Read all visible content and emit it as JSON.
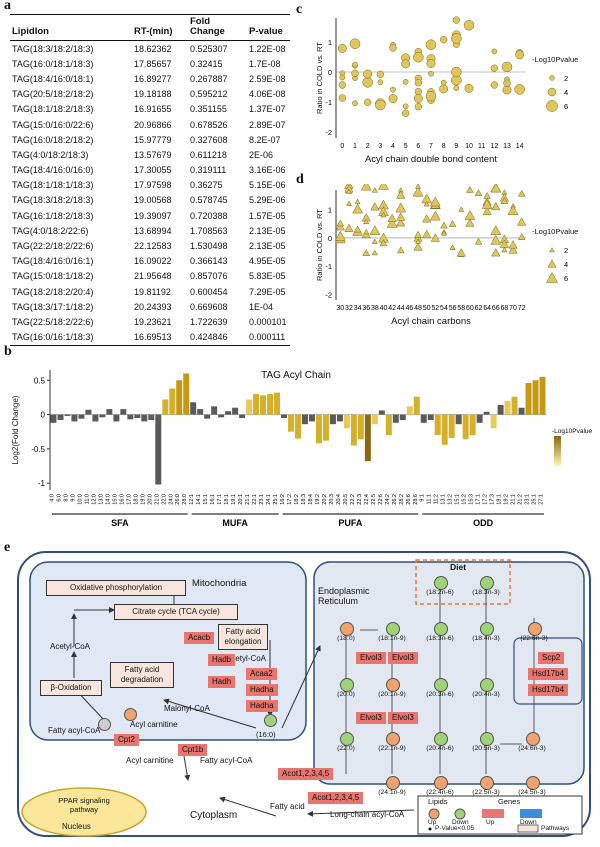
{
  "panels": {
    "a": "a",
    "b": "b",
    "c": "c",
    "d": "d",
    "e": "e"
  },
  "table_a": {
    "headers": [
      "LipidIon",
      "RT-(min)",
      "Fold Change",
      "P-value"
    ],
    "rows": [
      [
        "TAG(18:3/18:2/18:3)",
        "18.62362",
        "0.525307",
        "1.22E-08"
      ],
      [
        "TAG(16:0/18:1/18:3)",
        "17.85657",
        "0.32415",
        "1.7E-08"
      ],
      [
        "TAG(18:4/16:0/18:1)",
        "16.89277",
        "0.267887",
        "2.59E-08"
      ],
      [
        "TAG(20:5/18:2/18:2)",
        "19.18188",
        "0.595212",
        "4.06E-08"
      ],
      [
        "TAG(18:1/18:2/18:3)",
        "16.91655",
        "0.351155",
        "1.37E-07"
      ],
      [
        "TAG(15:0/16:0/22:6)",
        "20.96866",
        "0.678526",
        "2.89E-07"
      ],
      [
        "TAG(16:0/18:2/18:2)",
        "15.97779",
        "0.327608",
        "8.2E-07"
      ],
      [
        "TAG(4:0/18:2/18:3)",
        "13.57679",
        "0.611218",
        "2E-06"
      ],
      [
        "TAG(18:4/16:0/16:0)",
        "17.30055",
        "0.319111",
        "3.16E-06"
      ],
      [
        "TAG(18:1/18:1/18:3)",
        "17.97598",
        "0.36275",
        "5.15E-06"
      ],
      [
        "TAG(18:3/18:2/18:3)",
        "19.00568",
        "0.578745",
        "5.29E-06"
      ],
      [
        "TAG(16:1/18:2/18:3)",
        "19.39097",
        "0.720388",
        "1.57E-05"
      ],
      [
        "TAG(4:0/18:2/22:6)",
        "13.68994",
        "1.708563",
        "2.13E-05"
      ],
      [
        "TAG(22:2/18:2/22:6)",
        "22.12583",
        "1.530498",
        "2.13E-05"
      ],
      [
        "TAG(18:4/16:0/16:1)",
        "16.09022",
        "0.366143",
        "4.95E-05"
      ],
      [
        "TAG(15:0/18:1/18:2)",
        "21.95648",
        "0.857076",
        "5.83E-05"
      ],
      [
        "TAG(18:2/18:2/20:4)",
        "19.81192",
        "0.600454",
        "7.29E-05"
      ],
      [
        "TAG(18:3/17:1/18:2)",
        "20.24393",
        "0.669608",
        "1E-04"
      ],
      [
        "TAG(22:5/18:2/22:6)",
        "19.23621",
        "1.722639",
        "0.000101"
      ],
      [
        "TAG(16:0/16:1/18:3)",
        "16.69513",
        "0.424846",
        "0.000111"
      ]
    ]
  },
  "chart_data": [
    {
      "panel": "b",
      "type": "bar",
      "title": "TAG Acyl Chain",
      "ylabel": "Log2(Fold Change)",
      "ylim": [
        -1.1,
        0.65
      ],
      "yticks": [
        0.5,
        0.0,
        -0.5,
        -1.0
      ],
      "groups": [
        {
          "name": "SFA",
          "categories": [
            "4:0",
            "6:0",
            "8:0",
            "9:0",
            "10:0",
            "11:0",
            "12:0",
            "13:0",
            "14:0",
            "15:0",
            "16:0",
            "17:0",
            "18:0",
            "19:0",
            "20:0",
            "21:0",
            "22:0",
            "24:0",
            "26:0",
            "28:0"
          ],
          "values": [
            -0.12,
            -0.08,
            -0.02,
            -0.1,
            -0.06,
            0.07,
            -0.1,
            -0.04,
            0.08,
            -0.1,
            0.08,
            -0.07,
            -0.05,
            -0.1,
            -0.08,
            -1.02,
            0.22,
            0.38,
            0.5,
            0.6
          ],
          "significance": [
            2,
            2,
            1,
            2,
            1,
            1,
            2,
            1,
            1,
            2,
            2,
            1,
            1,
            2,
            2,
            1,
            4,
            4,
            5,
            5
          ]
        },
        {
          "name": "MUFA",
          "categories": [
            "12:1",
            "14:1",
            "15:1",
            "16:1",
            "17:1",
            "18:1",
            "19:1",
            "20:1",
            "21:1",
            "22:1",
            "23:1",
            "24:1",
            "25:1"
          ],
          "values": [
            0.18,
            0.08,
            -0.06,
            0.12,
            -0.04,
            0.05,
            0.1,
            -0.05,
            0.22,
            0.3,
            0.28,
            0.3,
            0.32
          ],
          "significance": [
            1,
            1,
            1,
            2,
            1,
            1,
            2,
            1,
            3,
            4,
            4,
            4,
            4
          ]
        },
        {
          "name": "PUFA",
          "categories": [
            "16:2",
            "17:2",
            "18:2",
            "18:3",
            "18:4",
            "19:2",
            "20:2",
            "20:3",
            "20:4",
            "20:5",
            "22:2",
            "22:3",
            "22:4",
            "22:5",
            "22:6",
            "24:2",
            "26:2",
            "28:2",
            "26:6",
            "28:6"
          ],
          "values": [
            -0.05,
            -0.25,
            -0.35,
            -0.14,
            -0.1,
            -0.42,
            -0.38,
            -0.14,
            -0.1,
            -0.2,
            -0.45,
            -0.36,
            -0.68,
            -0.14,
            0.06,
            -0.3,
            -0.12,
            -0.08,
            0.12,
            0.26
          ],
          "significance": [
            1,
            4,
            4,
            2,
            2,
            4,
            4,
            2,
            2,
            3,
            4,
            4,
            6,
            3,
            2,
            4,
            2,
            2,
            3,
            4
          ]
        },
        {
          "name": "ODD",
          "categories": [
            "9:1",
            "11:1",
            "11:2",
            "13:1",
            "13:2",
            "15:1",
            "15:2",
            "15:3",
            "17:1",
            "17:2",
            "17:3",
            "19:1",
            "19:2",
            "21:1",
            "21:2",
            "23:1",
            "25:1",
            "27:1"
          ],
          "values": [
            -0.12,
            -0.08,
            -0.3,
            -0.44,
            -0.34,
            -0.14,
            -0.36,
            -0.3,
            -0.12,
            0.04,
            -0.2,
            0.14,
            0.2,
            0.26,
            0.1,
            0.46,
            0.5,
            0.55
          ],
          "significance": [
            2,
            1,
            4,
            4,
            4,
            2,
            4,
            4,
            2,
            1,
            3,
            2,
            3,
            4,
            2,
            5,
            5,
            5
          ]
        }
      ],
      "legend": {
        "title": "-Log10Pvalue",
        "placement": "right"
      }
    },
    {
      "panel": "c",
      "type": "scatter",
      "xlabel": "Acyl chain double bond content",
      "ylabel": "Ratio in COLD vs. RT",
      "xticks": [
        "0",
        "1",
        "2",
        "3",
        "4",
        "5",
        "6",
        "7",
        "8",
        "9",
        "10",
        "11",
        "12",
        "13",
        "14"
      ],
      "yticks": [
        "1",
        "0",
        "-1",
        "-2"
      ],
      "xlim": [
        -0.5,
        14.5
      ],
      "ylim": [
        -2.2,
        1.8
      ],
      "legend": {
        "title": "-Log10Pvalue",
        "sizes": [
          "2",
          "4",
          "6"
        ],
        "placement": "right"
      }
    },
    {
      "panel": "d",
      "type": "scatter",
      "xlabel": "Acyl chain carbons",
      "ylabel": "Ratio in COLD vs. RT",
      "xticks": [
        "30",
        "32",
        "34",
        "36",
        "38",
        "40",
        "42",
        "44",
        "46",
        "48",
        "50",
        "52",
        "54",
        "56",
        "58",
        "60",
        "62",
        "64",
        "66",
        "68",
        "70",
        "72"
      ],
      "yticks": [
        "1",
        "0",
        "-1",
        "-2"
      ],
      "xlim": [
        29,
        73
      ],
      "ylim": [
        -2.2,
        1.7
      ],
      "legend": {
        "title": "-Log10Pvalue",
        "sizes": [
          "2",
          "4",
          "6"
        ],
        "placement": "right"
      }
    }
  ],
  "diagram_e": {
    "nucleus": "Nucleus",
    "ppar": "PPAR signaling pathway",
    "cytoplasm": "Cytoplasm",
    "mito": {
      "title": "Mitochondria",
      "oxphos": "Oxidative phosphorylation",
      "tca": "Citrate cycle (TCA cycle)",
      "fae": "Fatty acid elongation",
      "acetyl_left": "Acetyl-CoA",
      "acetyl_right": "Acetyl-CoA",
      "fadeg": "Fatty acid degradation",
      "beta": "β-Oxidation",
      "malonyl": "Malonyl-CoA",
      "fatty_acyl": "Fatty acyl-CoA",
      "acyl_carn": "Acyl carnitine",
      "c16": "(16:0)"
    },
    "genes_mito": [
      "Acacb",
      "Hadb",
      "Acaa2",
      "Hadh",
      "Hadha",
      "Hadha",
      "Cpt2"
    ],
    "cyto": {
      "acyl_carn": "Acyl carnitine",
      "fatty_acyl": "Fatty acyl-CoA",
      "fatty_acid": "Fatty acid",
      "lcac": "Long-chain acyl-CoA"
    },
    "genes_cyto": [
      "Cpt1b",
      "Acot1,2,3,4,5",
      "Acot1,2,3,4,5"
    ],
    "er": {
      "title": "Endoplasmic Reticulum",
      "diet": "Diet",
      "nodes": [
        "(18:2n-6)",
        "(18:3n-3)",
        "(18:0)",
        "(18:1n-9)",
        "(18:3n-6)",
        "(18:4n-3)",
        "(22:6n-3)",
        "(20:0)",
        "(20:1n-9)",
        "(20:3n-6)",
        "(20:4n-3)",
        "(22:0)",
        "(22:1n-9)",
        "(20:4n-6)",
        "(20:5n-3)",
        "(24:6n-3)",
        "(24:1n-9)",
        "(22:4n-6)",
        "(22:5n-3)",
        "(24:5n-3)"
      ],
      "genes": [
        "Elvol3",
        "Elvol3",
        "Elvol3",
        "Elvol3",
        "Scp2",
        "Hsd17b4",
        "Hsd17b4"
      ]
    },
    "legend": {
      "lipids": "Lipids",
      "genes": "Genes",
      "up": "Up",
      "down": "Down",
      "gup": "Up",
      "gdown": "Down",
      "pval": "P-Value<0.05",
      "pathways": "Pathways"
    }
  }
}
